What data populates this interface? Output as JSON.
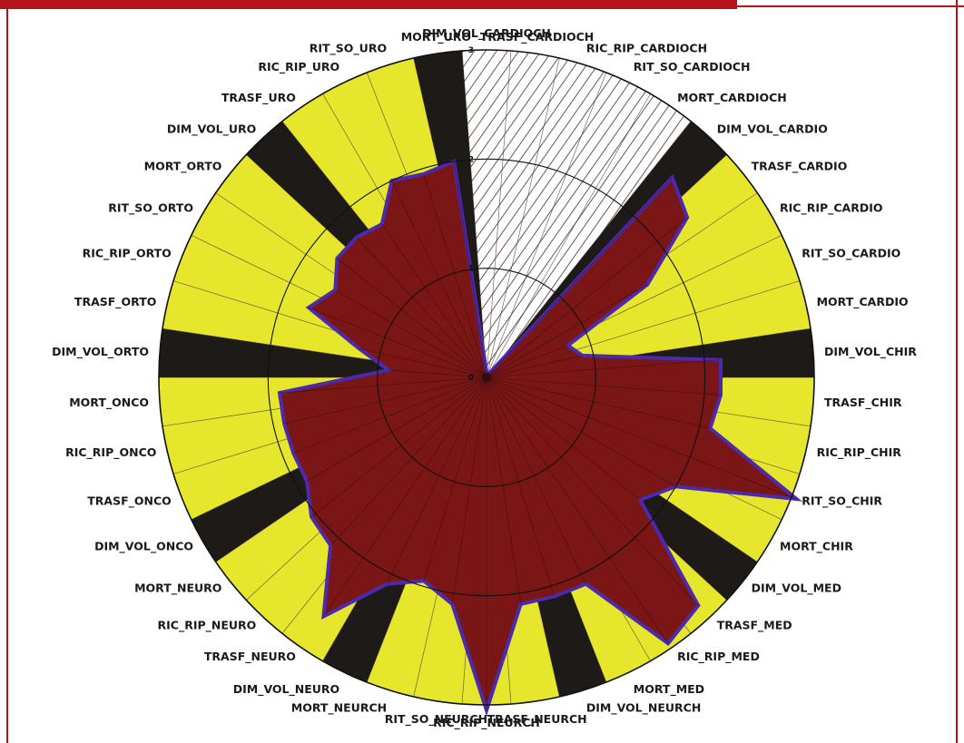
{
  "colors": {
    "frame": "#b5121b",
    "band_yellow": "#e6e62c",
    "band_dark": "#1e1a17",
    "band_hatch": "#ffffff",
    "hatch_line": "#4a2a2a",
    "area_fill": "#7a1616",
    "area_outline": "#4b2ab0",
    "ring": "#111111",
    "spoke": "#3a2a2a"
  },
  "chart_data": {
    "type": "radar",
    "title": "",
    "rmax": 3,
    "ticks": [
      0,
      1,
      2,
      3
    ],
    "groups": [
      {
        "name": "CARDIOCH",
        "band": "hatched"
      },
      {
        "name": "CARDIO",
        "band": "yellow"
      },
      {
        "name": "CHIR",
        "band": "yellow"
      },
      {
        "name": "MED",
        "band": "yellow"
      },
      {
        "name": "NEURCH",
        "band": "yellow"
      },
      {
        "name": "NEURO",
        "band": "yellow"
      },
      {
        "name": "ONCO",
        "band": "yellow"
      },
      {
        "name": "ORTO",
        "band": "yellow"
      },
      {
        "name": "URO",
        "band": "yellow"
      }
    ],
    "categories": [
      "DIM_VOL_CARDIOCH",
      "TRASF_CARDIOCH",
      "RIC_RIP_CARDIOCH",
      "RIT_SO_CARDIOCH",
      "MORT_CARDIOCH",
      "DIM_VOL_CARDIO",
      "TRASF_CARDIO",
      "RIC_RIP_CARDIO",
      "RIT_SO_CARDIO",
      "MORT_CARDIO",
      "DIM_VOL_CHIR",
      "TRASF_CHIR",
      "RIC_RIP_CHIR",
      "RIT_SO_CHIR",
      "MORT_CHIR",
      "DIM_VOL_MED",
      "TRASF_MED",
      "RIC_RIP_MED",
      "MORT_MED",
      "DIM_VOL_NEURCH",
      "TRASF_NEURCH",
      "RIC_RIP_NEURCH",
      "RIT_SO_NEURCH",
      "MORT_NEURCH",
      "DIM_VOL_NEURO",
      "TRASF_NEURO",
      "RIC_RIP_NEURO",
      "MORT_NEURO",
      "DIM_VOL_ONCO",
      "TRASF_ONCO",
      "RIC_RIP_ONCO",
      "MORT_ONCO",
      "DIM_VOL_ORTO",
      "TRASF_ORTO",
      "RIC_RIP_ORTO",
      "RIT_SO_ORTO",
      "MORT_ORTO",
      "DIM_VOL_URO",
      "TRASF_URO",
      "RIC_RIP_URO",
      "RIT_SO_URO",
      "MORT_URO"
    ],
    "category_group": [
      0,
      0,
      0,
      0,
      0,
      1,
      1,
      1,
      1,
      1,
      2,
      2,
      2,
      2,
      2,
      3,
      3,
      3,
      3,
      4,
      4,
      4,
      4,
      4,
      5,
      5,
      5,
      5,
      6,
      6,
      6,
      6,
      7,
      7,
      7,
      7,
      7,
      8,
      8,
      8,
      8,
      8
    ],
    "values": [
      0.05,
      0.05,
      0.05,
      0.05,
      0.05,
      2.5,
      2.35,
      1.7,
      0.8,
      0.9,
      2.15,
      2.15,
      2.1,
      3.05,
      2.0,
      1.8,
      2.85,
      2.95,
      2.1,
      2.1,
      2.1,
      3.05,
      2.1,
      1.95,
      2.1,
      2.65,
      2.1,
      2.05,
      1.9,
      1.9,
      1.9,
      1.9,
      0.9,
      1.2,
      1.75,
      1.6,
      1.75,
      1.75,
      1.7,
      2.0,
      1.95,
      2.0
    ]
  }
}
